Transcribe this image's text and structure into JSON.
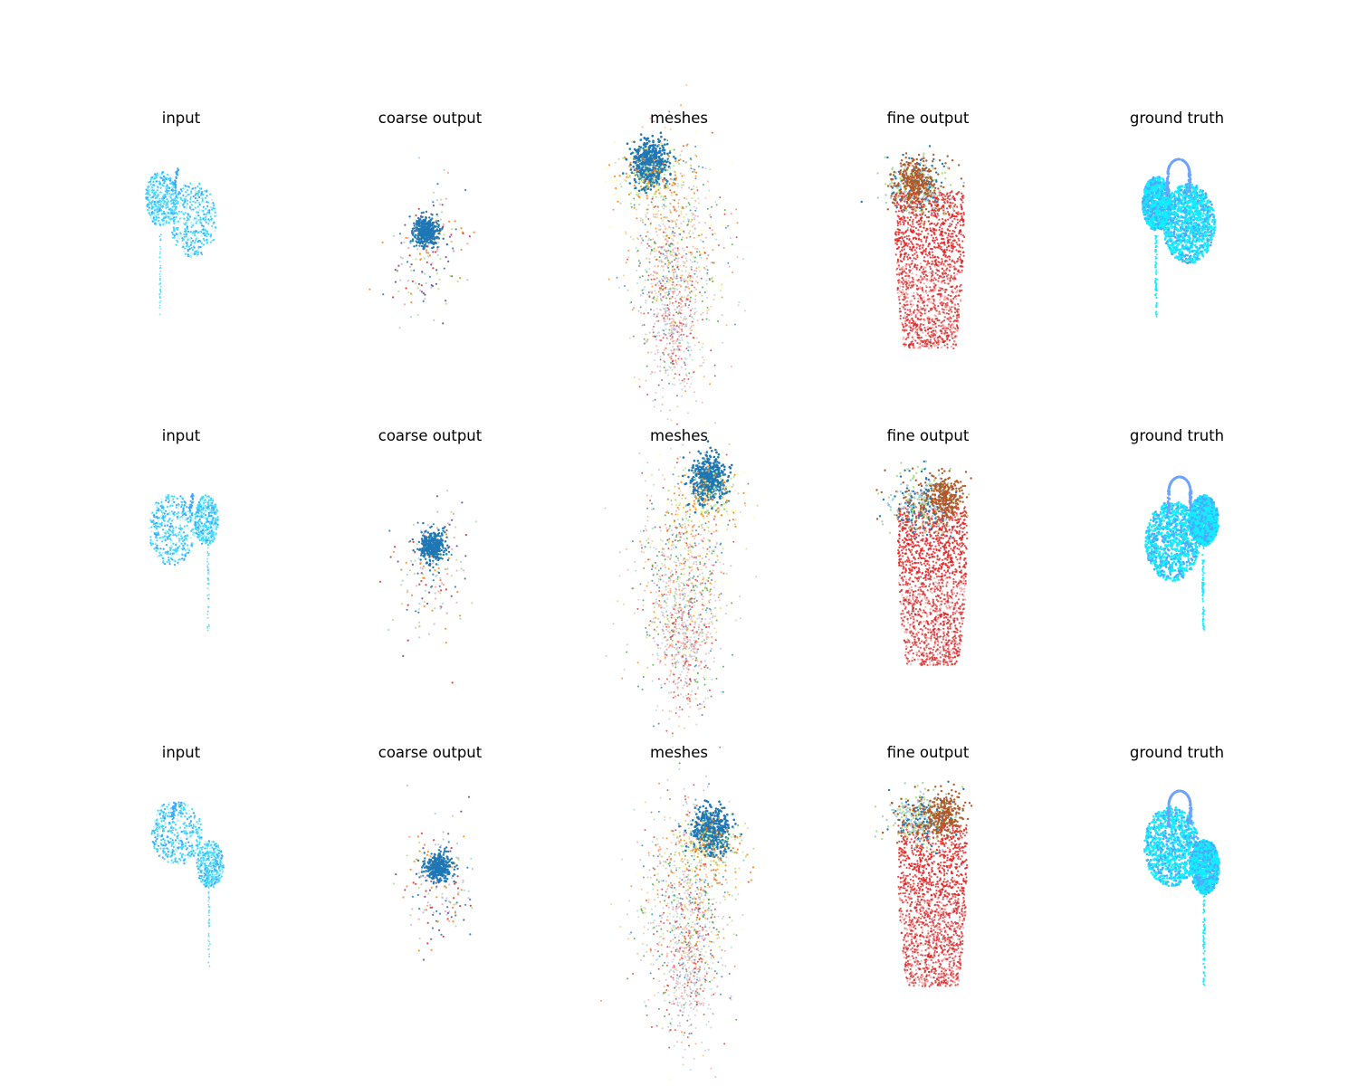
{
  "figure": {
    "rows": [
      {
        "panels": [
          "input",
          "coarse output",
          "meshes",
          "fine output",
          "ground truth"
        ]
      },
      {
        "panels": [
          "input",
          "coarse output",
          "meshes",
          "fine output",
          "ground truth"
        ]
      },
      {
        "panels": [
          "input",
          "coarse output",
          "meshes",
          "fine output",
          "ground truth"
        ]
      }
    ]
  },
  "colors": {
    "input_light": "#b8f4ff",
    "input_mid": "#45d8ff",
    "input_dark": "#3aa6ff",
    "gt_cyan": "#14ecff",
    "gt_blue": "#4aa8ff",
    "gt_handle": "#6ea2ff",
    "tab_blue": "#1f77b4",
    "tab_orange": "#ff7f0e",
    "tab_red": "#d62728",
    "bright_red": "#e31a1c",
    "brown": "#b15928",
    "light_blue": "#a6cee3",
    "pink": "#fb9a99",
    "lavender": "#cab2d6",
    "light_green": "#b2df8a",
    "yellow": "#ffff99",
    "green": "#33a02c",
    "purple": "#6a3d9a",
    "light_orange": "#fdbf6f"
  }
}
